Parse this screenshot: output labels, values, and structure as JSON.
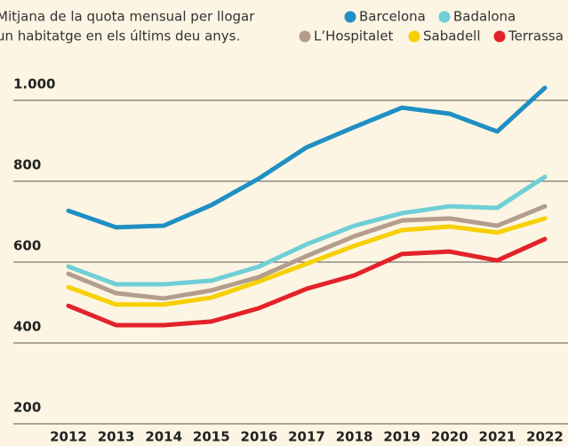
{
  "chart_data": {
    "type": "line",
    "subtitle": [
      "Mitjana de la quota mensual per llogar",
      "un habitatge en els últims deu anys."
    ],
    "categories": [
      "2012",
      "2013",
      "2014",
      "2015",
      "2016",
      "2017",
      "2018",
      "2019",
      "2020",
      "2021",
      "2022"
    ],
    "series": [
      {
        "name": "Barcelona",
        "color": "#1f8fc4",
        "values": [
          727,
          686,
          690,
          741,
          807,
          884,
          934,
          982,
          967,
          923,
          1031
        ]
      },
      {
        "name": "Badalona",
        "color": "#6fcfd6",
        "values": [
          589,
          545,
          545,
          554,
          589,
          644,
          690,
          721,
          738,
          734,
          811
        ]
      },
      {
        "name": "L’Hospitalet",
        "color": "#b49d8c",
        "values": [
          571,
          523,
          510,
          530,
          563,
          615,
          664,
          703,
          708,
          690,
          738
        ]
      },
      {
        "name": "Sabadell",
        "color": "#f6d000",
        "values": [
          538,
          495,
          495,
          512,
          552,
          596,
          640,
          679,
          688,
          673,
          708
        ]
      },
      {
        "name": "Terrassa",
        "color": "#e3222a",
        "values": [
          492,
          444,
          444,
          453,
          486,
          534,
          567,
          620,
          626,
          604,
          657
        ]
      }
    ],
    "ylim": [
      200,
      1100
    ],
    "yticks": [
      {
        "value": 200,
        "label": "200"
      },
      {
        "value": 400,
        "label": "400"
      },
      {
        "value": 600,
        "label": "600"
      },
      {
        "value": 800,
        "label": "800"
      },
      {
        "value": 1000,
        "label": "1.000"
      }
    ],
    "grid": true
  }
}
